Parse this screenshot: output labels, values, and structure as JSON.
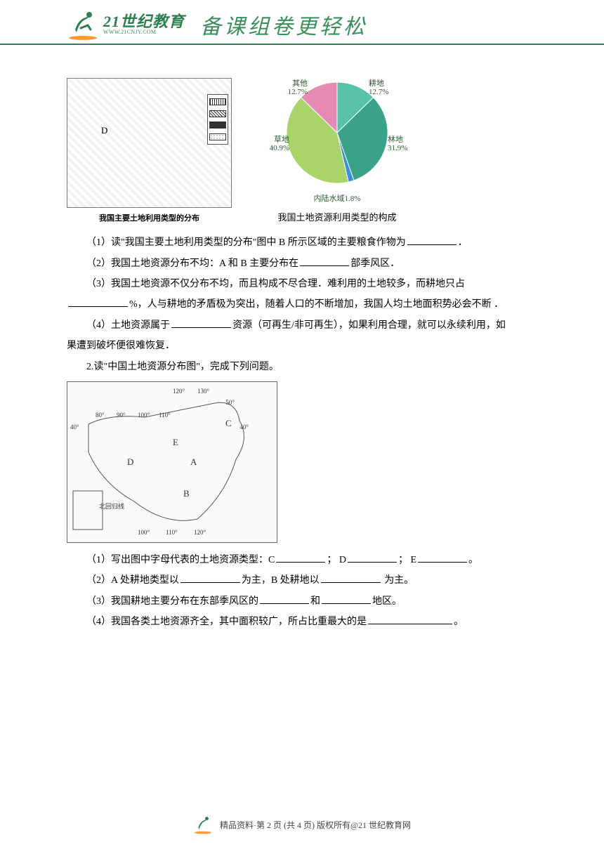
{
  "header": {
    "logo_title": "21世纪教育",
    "logo_sub": "WWW.21CNJY.COM",
    "slogan": "备课组卷更轻松"
  },
  "figures": {
    "map1_caption": "我国主要土地利用类型的分布",
    "map1_label": "D",
    "pie_caption": "我国土地资源利用类型的构成",
    "pie": {
      "type": "pie",
      "background_color": "#ffffff",
      "slices": [
        {
          "label": "耕地",
          "text": "耕地\n12.7%",
          "value": 12.7,
          "color": "#57c2a6"
        },
        {
          "label": "林地",
          "text": "林地\n31.9%",
          "value": 31.9,
          "color": "#3aa28a"
        },
        {
          "label": "内陆水域",
          "text": "内陆水域1.8%",
          "value": 1.8,
          "color": "#3a8fdc"
        },
        {
          "label": "草地",
          "text": "草地\n40.9%",
          "value": 40.9,
          "color": "#a9d46a"
        },
        {
          "label": "其他",
          "text": "其他\n12.7%",
          "value": 12.7,
          "color": "#e58bb4"
        }
      ],
      "label_fontsize": 11,
      "label_color": "#2a5d2a",
      "start_angle_deg": -90
    },
    "map2": {
      "grid_labels_top": [
        "120°",
        "130°"
      ],
      "grid_labels_right_top": [
        "50°",
        "40°"
      ],
      "grid_labels_left": [
        "40°"
      ],
      "grid_labels_interior_top": [
        "80°",
        "90°",
        "100°",
        "110°"
      ],
      "letters": [
        "A",
        "B",
        "C",
        "D",
        "E"
      ],
      "tropic_label": "北回归线",
      "bottom_lons": [
        "100°",
        "110°",
        "120°"
      ]
    }
  },
  "questions": {
    "q1_1_a": "（1）读\"我国主要土地利用类型的分布\"图中 B 所示区域的主要粮食作物为",
    "q1_1_b": "．",
    "q1_2_a": "（2）我国土地资源分布不均：A 和 B 主要分布在",
    "q1_2_b": "部季风区．",
    "q1_3_a": "（3）我国土地资源不仅分布不均，而且构成不尽合理．难利用的土地较多，而耕地只占",
    "q1_3_b": "%，人与耕地的矛盾极为突出，随着人口的不断增加，我国人均土地面积势必会不断 ．",
    "q1_4_a": "（4）土地资源属于",
    "q1_4_b": "资源（可再生/非可再生），如果利用合理，就可以永续利用，如",
    "q1_4_c": "果遭到破坏便很难恢复．",
    "q2_title": "2.读\"中国土地资源分布图\"，完成下列问题。",
    "q2_1_a": "（1）写出图中字母代表的土地资源类型：C",
    "q2_1_b": "； D",
    "q2_1_c": "； E",
    "q2_1_d": "。",
    "q2_2_a": "（2）A 处耕地类型以",
    "q2_2_b": "为主，B 处耕地以",
    "q2_2_c": " 为主。",
    "q2_3_a": "（3）我国耕地主要分布在东部季风区的",
    "q2_3_b": "和",
    "q2_3_c": "地区。",
    "q2_4_a": "（4）我国各类土地资源齐全，其中面积较广，所占比重最大的是",
    "q2_4_b": "。"
  },
  "footer": {
    "text_a": "精品资料·第 2 页   (共 4 页)   版权所有@21 世纪教育网"
  }
}
